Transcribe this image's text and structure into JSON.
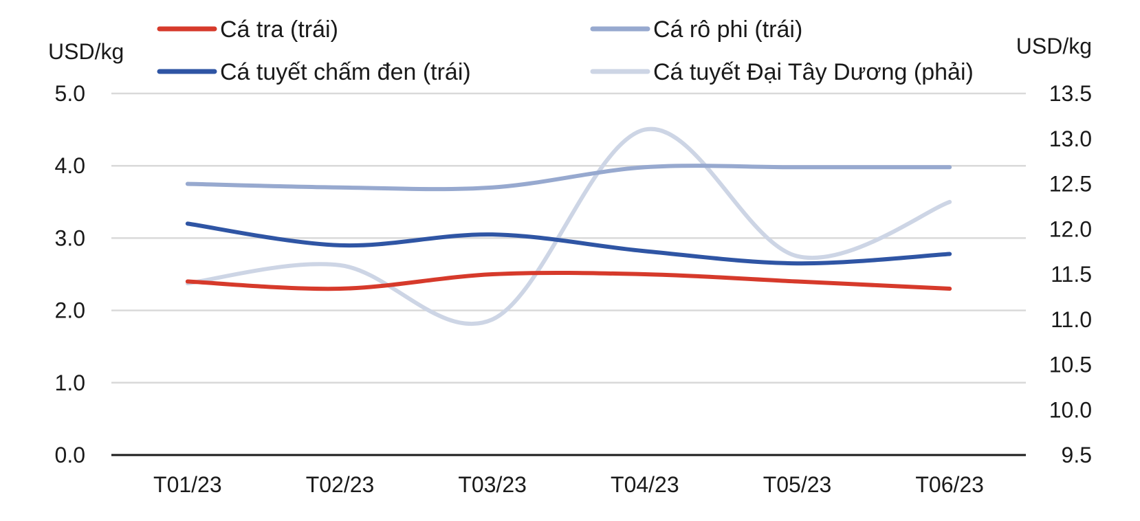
{
  "chart_data": {
    "type": "line",
    "categories": [
      "T01/23",
      "T02/23",
      "T03/23",
      "T04/23",
      "T05/23",
      "T06/23"
    ],
    "left_axis": {
      "unit": "USD/kg",
      "ylim": [
        0,
        5
      ],
      "ticks": [
        "0.0",
        "1.0",
        "2.0",
        "3.0",
        "4.0",
        "5.0"
      ]
    },
    "right_axis": {
      "unit": "USD/kg",
      "ylim": [
        9.5,
        13.5
      ],
      "ticks": [
        "9.5",
        "10.0",
        "10.5",
        "11.0",
        "11.5",
        "12.0",
        "12.5",
        "13.0",
        "13.5"
      ]
    },
    "grid": true,
    "legend_position": "top",
    "series": [
      {
        "name": "Cá tra (trái)",
        "axis": "left",
        "color": "#d63a2b",
        "values": [
          2.4,
          2.3,
          2.5,
          2.5,
          2.4,
          2.3
        ]
      },
      {
        "name": "Cá rô phi (trái)",
        "axis": "left",
        "color": "#97a9cf",
        "values": [
          3.75,
          3.7,
          3.7,
          3.98,
          3.98,
          3.98
        ]
      },
      {
        "name": "Cá tuyết chấm đen (trái)",
        "axis": "left",
        "color": "#2f55a4",
        "values": [
          3.2,
          2.9,
          3.05,
          2.82,
          2.65,
          2.78
        ]
      },
      {
        "name": "Cá tuyết Đại Tây Dương (phải)",
        "axis": "right",
        "color": "#cdd5e5",
        "values": [
          11.4,
          11.6,
          11.0,
          13.1,
          11.7,
          12.3
        ]
      }
    ]
  }
}
